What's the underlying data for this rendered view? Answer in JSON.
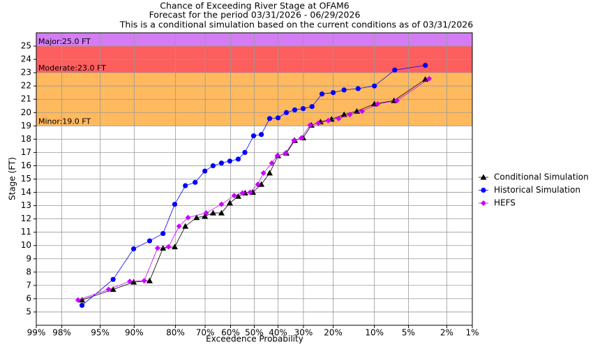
{
  "chart_data": {
    "type": "probability-line",
    "title": [
      "Chance of Exceeding River Stage at OFAM6",
      "Forecast for the period 03/31/2026 - 06/29/2026",
      "This is a conditional simulation based on the current conditions as of 03/31/2026"
    ],
    "x_label": "Exceedence Probability",
    "y_label": "Stage (FT)",
    "x_scale": "normal-probability",
    "xlim": [
      99,
      1
    ],
    "xticks": [
      {
        "value": 99,
        "label": "99%"
      },
      {
        "value": 98,
        "label": "98%"
      },
      {
        "value": 95,
        "label": "95%"
      },
      {
        "value": 90,
        "label": "90%"
      },
      {
        "value": 80,
        "label": "80%"
      },
      {
        "value": 70,
        "label": "70%"
      },
      {
        "value": 60,
        "label": "60%"
      },
      {
        "value": 50,
        "label": "50%"
      },
      {
        "value": 40,
        "label": "40%"
      },
      {
        "value": 30,
        "label": "30%"
      },
      {
        "value": 20,
        "label": "20%"
      },
      {
        "value": 10,
        "label": "10%"
      },
      {
        "value": 5,
        "label": "5%"
      },
      {
        "value": 2,
        "label": "2%"
      },
      {
        "value": 1,
        "label": "1%"
      }
    ],
    "ylim": [
      4,
      26
    ],
    "yticks": [
      5,
      6,
      7,
      8,
      9,
      10,
      11,
      12,
      13,
      14,
      15,
      16,
      17,
      18,
      19,
      20,
      21,
      22,
      23,
      24,
      25
    ],
    "grid": true,
    "bands": [
      {
        "label": "Major:25.0 FT",
        "from": 25,
        "to": 26,
        "color": "#d47cf4"
      },
      {
        "label": "Moderate:23.0 FT",
        "from": 23,
        "to": 25,
        "color": "#ff5e5e"
      },
      {
        "label": "Minor:19.0 FT",
        "from": 19,
        "to": 23,
        "color": "#ffb95e"
      }
    ],
    "legend": "right",
    "series": [
      {
        "name": "Conditional Simulation",
        "color": "#000000",
        "marker": "triangle",
        "x": [
          96.7,
          93.4,
          90.1,
          86.8,
          83.5,
          80.2,
          76.9,
          73.1,
          70.1,
          67.0,
          63.7,
          60.3,
          56.8,
          53.9,
          50.6,
          47.0,
          43.5,
          40.0,
          36.6,
          33.3,
          30.1,
          27.1,
          24.0,
          20.5,
          16.9,
          13.7,
          10.0,
          6.8,
          3.4
        ],
        "values": [
          5.9,
          6.7,
          7.25,
          7.35,
          9.8,
          9.9,
          11.45,
          12.1,
          12.2,
          12.45,
          12.45,
          13.2,
          13.7,
          13.95,
          14.0,
          14.6,
          15.45,
          16.75,
          16.95,
          17.9,
          18.1,
          19.05,
          19.3,
          19.5,
          19.85,
          20.1,
          20.65,
          20.9,
          22.5
        ]
      },
      {
        "name": "Historical Simulation",
        "color": "#0000ff",
        "marker": "circle",
        "x": [
          96.7,
          93.4,
          90.1,
          86.8,
          83.5,
          80.2,
          76.9,
          73.6,
          70.1,
          67.0,
          63.7,
          60.3,
          56.8,
          54.0,
          50.3,
          47.0,
          43.5,
          40.0,
          36.6,
          33.3,
          30.1,
          26.9,
          23.5,
          20.0,
          16.9,
          13.4,
          10.0,
          6.7,
          3.4
        ],
        "values": [
          5.5,
          7.45,
          9.75,
          10.35,
          10.9,
          13.1,
          14.5,
          14.75,
          15.6,
          16.0,
          16.2,
          16.35,
          16.5,
          17.0,
          18.25,
          18.35,
          19.55,
          19.6,
          20.0,
          20.2,
          20.3,
          20.45,
          21.4,
          21.5,
          21.7,
          21.8,
          22.0,
          23.2,
          23.55
        ]
      },
      {
        "name": "HEFS",
        "color": "#cc00ff",
        "marker": "diamond",
        "x": [
          97.0,
          94.0,
          90.8,
          88.0,
          84.9,
          82.0,
          78.9,
          76.0,
          69.6,
          63.7,
          58.5,
          55.0,
          51.8,
          48.5,
          46.1,
          42.6,
          40.3,
          36.9,
          33.6,
          30.7,
          27.6,
          24.7,
          21.5,
          18.4,
          15.4,
          12.5,
          9.4,
          6.4,
          3.1
        ],
        "values": [
          5.9,
          6.7,
          7.3,
          7.35,
          9.8,
          9.9,
          11.45,
          12.1,
          12.45,
          13.1,
          13.75,
          13.95,
          14.0,
          14.6,
          15.45,
          16.2,
          16.75,
          16.95,
          17.9,
          18.1,
          19.05,
          19.2,
          19.4,
          19.55,
          19.85,
          20.1,
          20.65,
          20.9,
          22.55
        ]
      }
    ]
  }
}
